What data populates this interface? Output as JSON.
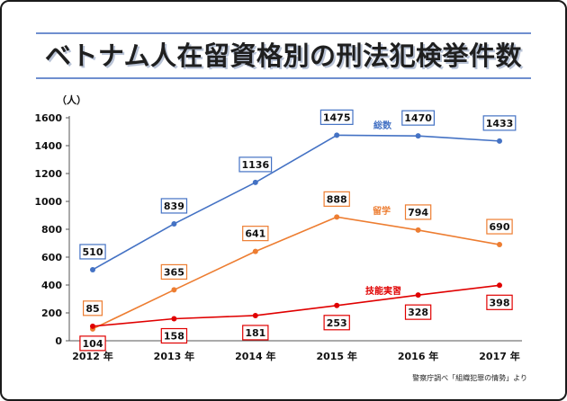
{
  "title": "ベトナム人在留資格別の刑法犯検挙件数",
  "unit": "（人）",
  "source": "警察庁調べ「組織犯罪の情勢」より",
  "chart_data": {
    "type": "line",
    "title": "ベトナム人在留資格別の刑法犯検挙件数",
    "ylabel": "（人）",
    "xlabel": "",
    "ylim": [
      0,
      1600
    ],
    "yticks": [
      0,
      200,
      400,
      600,
      800,
      1000,
      1200,
      1400,
      1600
    ],
    "categories": [
      "2012 年",
      "2013 年",
      "2014 年",
      "2015 年",
      "2016 年",
      "2017 年"
    ],
    "series": [
      {
        "name": "総数",
        "color": "#4472c4",
        "values": [
          510,
          839,
          1136,
          1475,
          1470,
          1433
        ]
      },
      {
        "name": "留学",
        "color": "#ed7d31",
        "values": [
          85,
          365,
          641,
          888,
          794,
          690
        ]
      },
      {
        "name": "技能実習",
        "color": "#e00000",
        "values": [
          104,
          158,
          181,
          253,
          328,
          398
        ]
      }
    ]
  }
}
